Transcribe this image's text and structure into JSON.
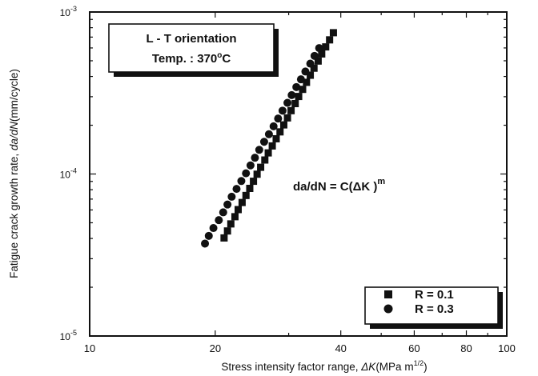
{
  "chart_data": {
    "type": "scatter",
    "xlabel": "Stress intensity factor range, ΔK(MPa m^1/2)",
    "ylabel": "Fatigue crack growth rate, da/dN(mm/cycle)",
    "xscale": "log",
    "yscale": "log",
    "xlim": [
      10,
      100
    ],
    "ylim": [
      1e-05,
      0.001
    ],
    "x_ticks": [
      10,
      20,
      40,
      60,
      80,
      100
    ],
    "x_tick_labels": [
      "10",
      "20",
      "40",
      "60",
      "80",
      "100"
    ],
    "y_ticks": [
      1e-05,
      0.0001,
      0.001
    ],
    "y_tick_labels": [
      {
        "base": "10",
        "exp": "-5"
      },
      {
        "base": "10",
        "exp": "-4"
      },
      {
        "base": "10",
        "exp": "-3"
      }
    ],
    "grid": false,
    "annotation_box": {
      "line1": "L - T orientation",
      "line2_prefix": "Temp. : 370",
      "line2_degree": "o",
      "line2_suffix": "C"
    },
    "equation": {
      "text": "da/dN = C(ΔK )",
      "superscript": "m"
    },
    "legend_position": "bottom-right",
    "series": [
      {
        "name": "R = 0.1",
        "marker": "square",
        "color": "#111111",
        "points": [
          [
            21.0,
            4.03e-05
          ],
          [
            21.4,
            4.45e-05
          ],
          [
            21.8,
            4.92e-05
          ],
          [
            22.3,
            5.45e-05
          ],
          [
            22.7,
            6.03e-05
          ],
          [
            23.2,
            6.67e-05
          ],
          [
            23.7,
            7.37e-05
          ],
          [
            24.2,
            8.15e-05
          ],
          [
            24.7,
            9.02e-05
          ],
          [
            25.2,
            9.97e-05
          ],
          [
            25.7,
            0.00011
          ],
          [
            26.3,
            0.000122
          ],
          [
            26.8,
            0.000135
          ],
          [
            27.4,
            0.000149
          ],
          [
            28.0,
            0.000165
          ],
          [
            28.6,
            0.000182
          ],
          [
            29.2,
            0.000201
          ],
          [
            29.8,
            0.000222
          ],
          [
            30.4,
            0.000246
          ],
          [
            31.1,
            0.000272
          ],
          [
            31.7,
            0.000301
          ],
          [
            32.4,
            0.000333
          ],
          [
            33.1,
            0.000368
          ],
          [
            33.8,
            0.000407
          ],
          [
            34.5,
            0.00045
          ],
          [
            35.3,
            0.000498
          ],
          [
            36.0,
            0.000551
          ],
          [
            36.8,
            0.000609
          ],
          [
            37.6,
            0.000673
          ],
          [
            38.4,
            0.000745
          ]
        ]
      },
      {
        "name": "R = 0.3",
        "marker": "circle",
        "color": "#111111",
        "points": [
          [
            18.9,
            3.72e-05
          ],
          [
            19.3,
            4.15e-05
          ],
          [
            19.8,
            4.64e-05
          ],
          [
            20.4,
            5.19e-05
          ],
          [
            20.9,
            5.8e-05
          ],
          [
            21.4,
            6.48e-05
          ],
          [
            21.9,
            7.24e-05
          ],
          [
            22.5,
            8.09e-05
          ],
          [
            23.1,
            9.05e-05
          ],
          [
            23.7,
            0.000101
          ],
          [
            24.3,
            0.000113
          ],
          [
            24.9,
            0.000126
          ],
          [
            25.5,
            0.000141
          ],
          [
            26.2,
            0.000158
          ],
          [
            26.9,
            0.000176
          ],
          [
            27.6,
            0.000197
          ],
          [
            28.3,
            0.00022
          ],
          [
            29.0,
            0.000246
          ],
          [
            29.8,
            0.000275
          ],
          [
            30.5,
            0.000307
          ],
          [
            31.3,
            0.000344
          ],
          [
            32.1,
            0.000384
          ],
          [
            32.9,
            0.000429
          ],
          [
            33.8,
            0.00048
          ],
          [
            34.6,
            0.000536
          ],
          [
            35.5,
            0.000599
          ]
        ]
      }
    ]
  }
}
